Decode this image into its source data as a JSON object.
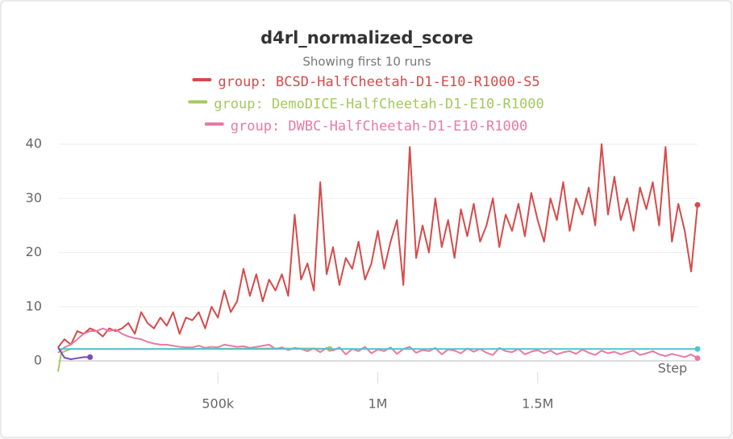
{
  "chart_data": {
    "type": "line",
    "title": "d4rl_normalized_score",
    "subtitle": "Showing first 10 runs",
    "xlabel": "Step",
    "x": [
      0,
      20000,
      40000,
      60000,
      80000,
      100000,
      120000,
      140000,
      160000,
      180000,
      200000,
      220000,
      240000,
      260000,
      280000,
      300000,
      320000,
      340000,
      360000,
      380000,
      400000,
      420000,
      440000,
      460000,
      480000,
      500000,
      520000,
      540000,
      560000,
      580000,
      600000,
      620000,
      640000,
      660000,
      680000,
      700000,
      720000,
      740000,
      760000,
      780000,
      800000,
      820000,
      840000,
      860000,
      880000,
      900000,
      920000,
      940000,
      960000,
      980000,
      1000000,
      1020000,
      1040000,
      1060000,
      1080000,
      1100000,
      1120000,
      1140000,
      1160000,
      1180000,
      1200000,
      1220000,
      1240000,
      1260000,
      1280000,
      1300000,
      1320000,
      1340000,
      1360000,
      1380000,
      1400000,
      1420000,
      1440000,
      1460000,
      1480000,
      1500000,
      1520000,
      1540000,
      1560000,
      1580000,
      1600000,
      1620000,
      1640000,
      1660000,
      1680000,
      1700000,
      1720000,
      1740000,
      1760000,
      1780000,
      1800000,
      1820000,
      1840000,
      1860000,
      1880000,
      1900000,
      1920000,
      1940000,
      1960000,
      1980000,
      2000000
    ],
    "series": [
      {
        "name": "group: BCSD-HalfCheetah-D1-E10-R1000-S5",
        "color": "#d64a4a",
        "values": [
          2.5,
          4,
          3,
          5.5,
          5,
          6,
          5.5,
          4.5,
          6,
          5.5,
          6,
          7,
          5,
          9,
          7,
          6,
          8,
          6.5,
          9,
          5,
          8,
          7.5,
          9,
          6,
          10,
          8,
          13,
          9,
          11,
          17,
          12,
          16,
          11,
          15,
          13,
          16,
          12,
          27,
          15,
          18,
          13,
          33,
          16,
          21,
          14,
          19,
          17,
          22,
          15,
          18,
          24,
          17,
          22,
          26,
          14,
          39.5,
          19,
          25,
          20,
          30,
          21,
          26,
          19,
          28,
          23,
          29,
          22,
          25,
          30,
          21,
          27,
          24,
          29,
          23,
          31,
          26,
          22,
          30,
          26,
          33,
          24,
          30,
          27,
          32,
          25,
          40,
          27,
          34,
          26,
          30,
          24,
          32,
          28,
          33,
          25,
          39.5,
          22,
          29,
          24,
          16.5,
          28.8
        ]
      },
      {
        "name": "group: DemoDICE-HalfCheetah-D1-E10-R1000",
        "color": "#a3c95e",
        "x": [
          0,
          10000,
          40000,
          100000,
          200000,
          400000,
          600000,
          800000,
          850000
        ],
        "values": [
          -2,
          1.5,
          2.2,
          2.2,
          2.2,
          2.2,
          2.3,
          2.3,
          2.2
        ]
      },
      {
        "name": "group: DWBC-HalfCheetah-D1-E10-R1000",
        "color": "#e87aa4",
        "values": [
          1.5,
          2.5,
          3,
          4,
          5,
          5.5,
          5.5,
          6,
          5.5,
          5.8,
          5,
          4.5,
          4.2,
          4,
          3.5,
          3.2,
          3,
          3,
          2.8,
          2.6,
          2.5,
          2.5,
          2.8,
          2.4,
          2.6,
          2.5,
          3,
          2.8,
          2.6,
          2.7,
          2.4,
          2.6,
          2.8,
          3,
          2.2,
          2.5,
          2,
          2.4,
          2.2,
          1.8,
          2.3,
          1.6,
          2.4,
          1.9,
          2.5,
          1.2,
          2.2,
          1.8,
          2.6,
          1.4,
          2.1,
          1.8,
          2.5,
          1.3,
          2.2,
          2.6,
          1.5,
          2,
          1.8,
          2.4,
          1.2,
          2.1,
          1.9,
          1.4,
          2.3,
          1.7,
          2.2,
          1.5,
          1.1,
          2.4,
          1.8,
          1.6,
          2.2,
          1.2,
          1.7,
          2,
          1.4,
          1.9,
          1.2,
          1.6,
          1.8,
          1.3,
          2.1,
          1.5,
          1.1,
          1.9,
          1.4,
          1.7,
          1.2,
          1.6,
          1.9,
          1.1,
          1.4,
          1.8,
          1.2,
          0.9,
          1.3,
          1,
          0.7,
          1.2,
          0.5
        ]
      },
      {
        "color": "#4fc3d4",
        "x": [
          0,
          2000000
        ],
        "values": [
          2.2,
          2.2
        ]
      },
      {
        "color": "#7b4bb5",
        "x": [
          0,
          20000,
          40000,
          60000,
          80000,
          100000
        ],
        "values": [
          2.5,
          0.6,
          0.3,
          0.5,
          0.7,
          0.7
        ]
      }
    ],
    "xlim": [
      0,
      2000000
    ],
    "xticks": [
      {
        "value": 500000,
        "label": "500k"
      },
      {
        "value": 1000000,
        "label": "1M"
      },
      {
        "value": 1500000,
        "label": "1.5M"
      }
    ],
    "ylim": [
      -2,
      40
    ],
    "yticks": [
      0,
      10,
      20,
      30,
      40
    ],
    "grid": true
  }
}
